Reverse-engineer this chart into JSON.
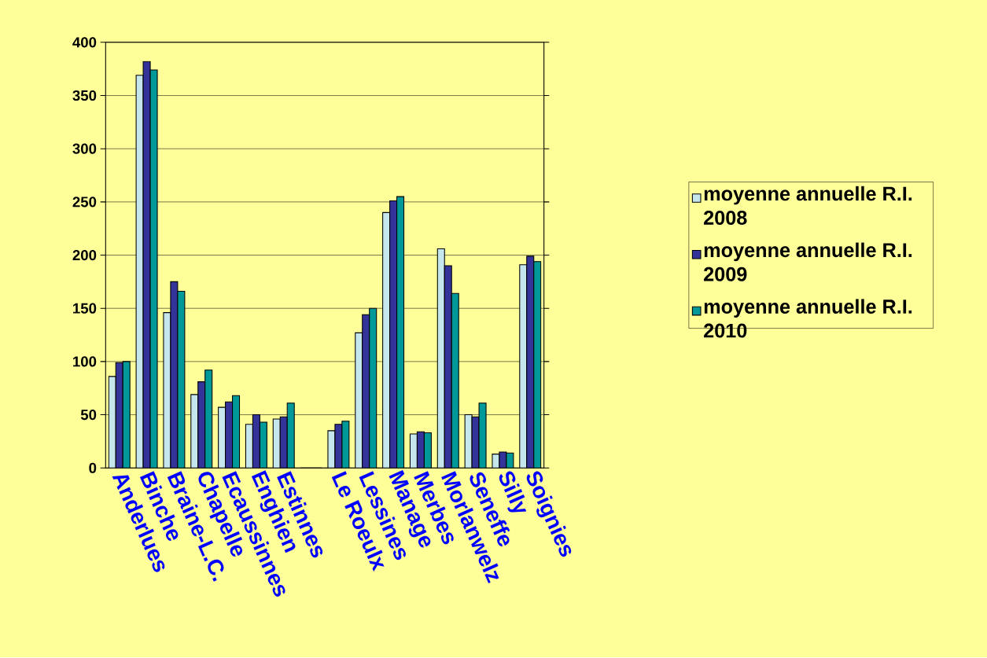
{
  "chart_data": {
    "type": "bar",
    "categories": [
      "Anderlues",
      "Binche",
      "Braine-L.C.",
      "Chapelle",
      "Ecaussinnes",
      "Enghien",
      "Estinnes",
      null,
      "Le Roeulx",
      "Lessines",
      "Manage",
      "Merbes",
      "Morlanwelz",
      "Seneffe",
      "Silly",
      "Soignies"
    ],
    "series": [
      {
        "name": "moyenne annuelle R.I. 2008",
        "color": "#c4e6ec",
        "values": [
          86,
          369,
          146,
          69,
          57,
          41,
          46,
          0,
          35,
          127,
          240,
          32,
          206,
          50,
          13,
          191
        ]
      },
      {
        "name": "moyenne annuelle R.I. 2009",
        "color": "#333399",
        "values": [
          99,
          382,
          175,
          81,
          62,
          50,
          48,
          0,
          41,
          144,
          251,
          34,
          190,
          48,
          15,
          199
        ]
      },
      {
        "name": "moyenne annuelle R.I. 2010",
        "color": "#009999",
        "values": [
          100,
          374,
          166,
          92,
          68,
          43,
          61,
          0,
          44,
          150,
          255,
          33,
          164,
          61,
          14,
          194
        ]
      }
    ],
    "ylim": [
      0,
      400
    ],
    "yticks": [
      0,
      50,
      100,
      150,
      200,
      250,
      300,
      350,
      400
    ],
    "grid": "y",
    "legend": "right"
  }
}
